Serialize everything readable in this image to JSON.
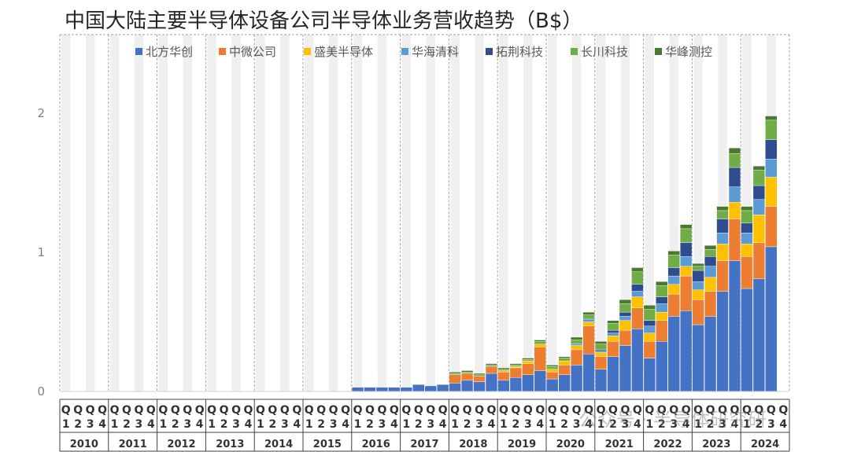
{
  "title": "中国大陆主要半导体设备公司半导体业务营收趋势（B$）",
  "watermark": "公众号 · 半导体研究研",
  "chart_data": {
    "type": "bar",
    "stacked": true,
    "title": "中国大陆主要半导体设备公司半导体业务营收趋势（B$）",
    "xlabel": "",
    "ylabel": "",
    "ylim": [
      0,
      2.5
    ],
    "yticks": [
      0,
      1,
      2
    ],
    "legend_position": "top",
    "grid": false,
    "years": [
      "2010",
      "2011",
      "2012",
      "2013",
      "2014",
      "2015",
      "2016",
      "2017",
      "2018",
      "2019",
      "2020",
      "2021",
      "2022",
      "2023",
      "2024"
    ],
    "quarters": [
      [
        "Q",
        "1"
      ],
      [
        "Q",
        "2"
      ],
      [
        "Q",
        "3"
      ],
      [
        "Q",
        "4"
      ]
    ],
    "series": [
      {
        "name": "北方华创",
        "color": "#4472C4",
        "values": [
          0,
          0,
          0,
          0,
          0,
          0,
          0,
          0,
          0,
          0,
          0,
          0,
          0,
          0,
          0,
          0,
          0,
          0,
          0,
          0,
          0,
          0,
          0,
          0,
          0.03,
          0.03,
          0.03,
          0.03,
          0.03,
          0.05,
          0.04,
          0.05,
          0.06,
          0.08,
          0.07,
          0.13,
          0.08,
          0.1,
          0.12,
          0.15,
          0.09,
          0.12,
          0.19,
          0.27,
          0.16,
          0.25,
          0.33,
          0.45,
          0.24,
          0.36,
          0.54,
          0.58,
          0.48,
          0.54,
          0.72,
          0.94,
          0.74,
          0.81,
          1.04,
          0
        ]
      },
      {
        "name": "中微公司",
        "color": "#ED7D31",
        "values": [
          0,
          0,
          0,
          0,
          0,
          0,
          0,
          0,
          0,
          0,
          0,
          0,
          0,
          0,
          0,
          0,
          0,
          0,
          0,
          0,
          0,
          0,
          0,
          0,
          0,
          0,
          0,
          0,
          0,
          0,
          0,
          0,
          0.06,
          0.05,
          0.04,
          0.05,
          0.06,
          0.07,
          0.08,
          0.17,
          0.05,
          0.07,
          0.11,
          0.2,
          0.09,
          0.11,
          0.11,
          0.15,
          0.12,
          0.15,
          0.16,
          0.25,
          0.18,
          0.18,
          0.22,
          0.3,
          0.23,
          0.26,
          0.29,
          0
        ]
      },
      {
        "name": "盛美半导体",
        "color": "#FFC000",
        "values": [
          0,
          0,
          0,
          0,
          0,
          0,
          0,
          0,
          0,
          0,
          0,
          0,
          0,
          0,
          0,
          0,
          0,
          0,
          0,
          0,
          0,
          0,
          0,
          0,
          0,
          0,
          0,
          0,
          0,
          0,
          0,
          0,
          0,
          0,
          0,
          0,
          0.01,
          0.01,
          0.02,
          0.02,
          0.02,
          0.03,
          0.03,
          0.03,
          0.03,
          0.04,
          0.07,
          0.08,
          0.06,
          0.06,
          0.07,
          0.07,
          0.07,
          0.1,
          0.12,
          0.12,
          0.09,
          0.2,
          0.21,
          0
        ]
      },
      {
        "name": "华海清科",
        "color": "#5B9BD5",
        "values": [
          0,
          0,
          0,
          0,
          0,
          0,
          0,
          0,
          0,
          0,
          0,
          0,
          0,
          0,
          0,
          0,
          0,
          0,
          0,
          0,
          0,
          0,
          0,
          0,
          0,
          0,
          0,
          0,
          0,
          0,
          0,
          0,
          0,
          0,
          0,
          0,
          0,
          0,
          0,
          0,
          0,
          0,
          0.01,
          0.02,
          0.01,
          0.02,
          0.03,
          0.04,
          0.05,
          0.06,
          0.06,
          0.07,
          0.06,
          0.08,
          0.08,
          0.11,
          0.08,
          0.11,
          0.13,
          0
        ]
      },
      {
        "name": "拓荆科技",
        "color": "#2E4C8F",
        "values": [
          0,
          0,
          0,
          0,
          0,
          0,
          0,
          0,
          0,
          0,
          0,
          0,
          0,
          0,
          0,
          0,
          0,
          0,
          0,
          0,
          0,
          0,
          0,
          0,
          0,
          0,
          0,
          0,
          0,
          0,
          0,
          0,
          0,
          0,
          0,
          0,
          0,
          0,
          0,
          0,
          0,
          0,
          0,
          0,
          0.01,
          0.02,
          0.03,
          0.05,
          0.04,
          0.05,
          0.06,
          0.1,
          0.08,
          0.07,
          0.1,
          0.14,
          0.07,
          0.1,
          0.14,
          0
        ]
      },
      {
        "name": "长川科技",
        "color": "#70AD47",
        "values": [
          0,
          0,
          0,
          0,
          0,
          0,
          0,
          0,
          0,
          0,
          0,
          0,
          0,
          0,
          0,
          0,
          0,
          0,
          0,
          0,
          0,
          0,
          0,
          0,
          0,
          0,
          0,
          0,
          0,
          0,
          0,
          0,
          0.01,
          0.01,
          0.01,
          0.01,
          0.01,
          0.01,
          0.01,
          0.02,
          0.02,
          0.02,
          0.03,
          0.03,
          0.04,
          0.05,
          0.06,
          0.09,
          0.08,
          0.08,
          0.09,
          0.1,
          0.03,
          0.05,
          0.06,
          0.1,
          0.09,
          0.11,
          0.14,
          0
        ]
      },
      {
        "name": "华峰测控",
        "color": "#4A7A2E",
        "values": [
          0,
          0,
          0,
          0,
          0,
          0,
          0,
          0,
          0,
          0,
          0,
          0,
          0,
          0,
          0,
          0,
          0,
          0,
          0,
          0,
          0,
          0,
          0,
          0,
          0,
          0,
          0,
          0,
          0,
          0,
          0,
          0,
          0.01,
          0.01,
          0.01,
          0.01,
          0.01,
          0.01,
          0.01,
          0.01,
          0.01,
          0.01,
          0.02,
          0.02,
          0.02,
          0.02,
          0.03,
          0.03,
          0.03,
          0.03,
          0.03,
          0.03,
          0.02,
          0.03,
          0.03,
          0.04,
          0.03,
          0.03,
          0.03,
          0
        ]
      }
    ]
  }
}
